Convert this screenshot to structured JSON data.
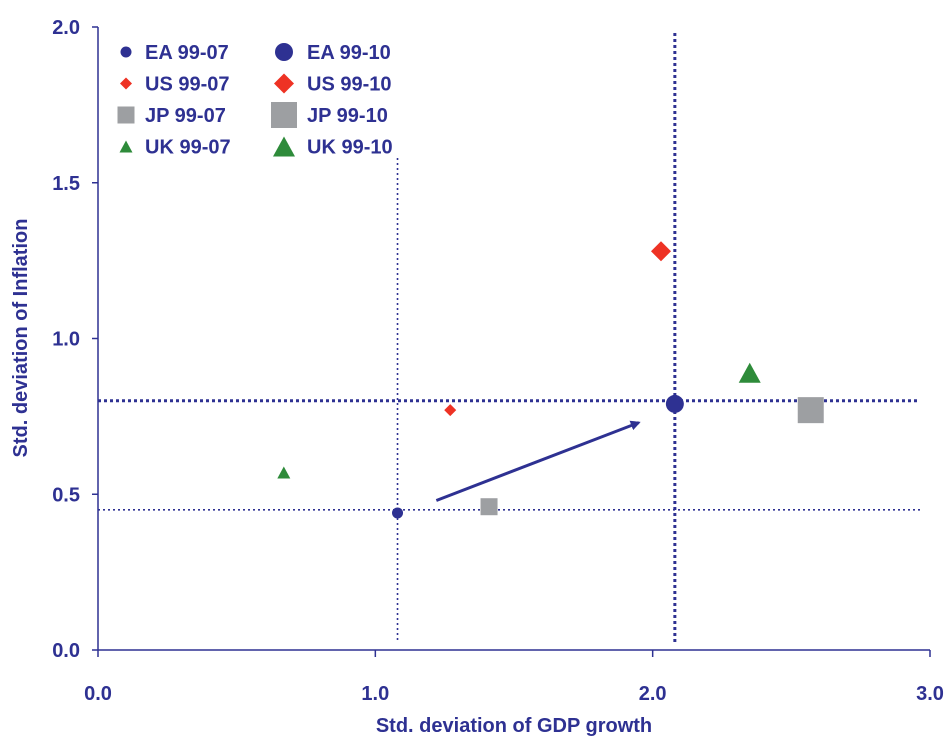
{
  "chart_data": {
    "type": "scatter",
    "xlabel": "Std. deviation of GDP growth",
    "ylabel": "Std. deviation of Inflation",
    "xlim": [
      0,
      3
    ],
    "ylim": [
      0,
      2
    ],
    "x_ticks": [
      "0.0",
      "1.0",
      "2.0",
      "3.0"
    ],
    "y_ticks": [
      "0.0",
      "0.5",
      "1.0",
      "1.5",
      "2.0"
    ],
    "grid": false,
    "legend_position": "top-left",
    "series": [
      {
        "name": "EA 99-07",
        "marker": "circle",
        "size": "small",
        "color": "#2e3192",
        "points": [
          {
            "x": 1.08,
            "y": 0.44
          }
        ]
      },
      {
        "name": "EA 99-10",
        "marker": "circle",
        "size": "large",
        "color": "#2e3192",
        "points": [
          {
            "x": 2.08,
            "y": 0.79
          }
        ]
      },
      {
        "name": "US 99-07",
        "marker": "diamond",
        "size": "small",
        "color": "#ee3224",
        "points": [
          {
            "x": 1.27,
            "y": 0.77
          }
        ]
      },
      {
        "name": "US 99-10",
        "marker": "diamond",
        "size": "large",
        "color": "#ee3224",
        "points": [
          {
            "x": 2.03,
            "y": 1.28
          }
        ]
      },
      {
        "name": "JP 99-07",
        "marker": "square",
        "size": "small",
        "color": "#9d9fa2",
        "points": [
          {
            "x": 1.41,
            "y": 0.46
          }
        ]
      },
      {
        "name": "JP 99-10",
        "marker": "square",
        "size": "large",
        "color": "#9d9fa2",
        "points": [
          {
            "x": 2.57,
            "y": 0.77
          }
        ]
      },
      {
        "name": "UK 99-07",
        "marker": "triangle",
        "size": "small",
        "color": "#2e8b3a",
        "points": [
          {
            "x": 0.67,
            "y": 0.57
          }
        ]
      },
      {
        "name": "UK 99-10",
        "marker": "triangle",
        "size": "large",
        "color": "#2e8b3a",
        "points": [
          {
            "x": 2.35,
            "y": 0.89
          }
        ]
      }
    ],
    "reference_lines": [
      {
        "orientation": "vertical",
        "value": 1.08,
        "style": "dotted-thin"
      },
      {
        "orientation": "horizontal",
        "value": 0.45,
        "style": "dotted-thin"
      },
      {
        "orientation": "vertical",
        "value": 2.08,
        "style": "dotted-thick"
      },
      {
        "orientation": "horizontal",
        "value": 0.8,
        "style": "dotted-thick"
      }
    ],
    "arrow": {
      "from": {
        "x": 1.22,
        "y": 0.48
      },
      "to": {
        "x": 1.95,
        "y": 0.73
      }
    }
  }
}
